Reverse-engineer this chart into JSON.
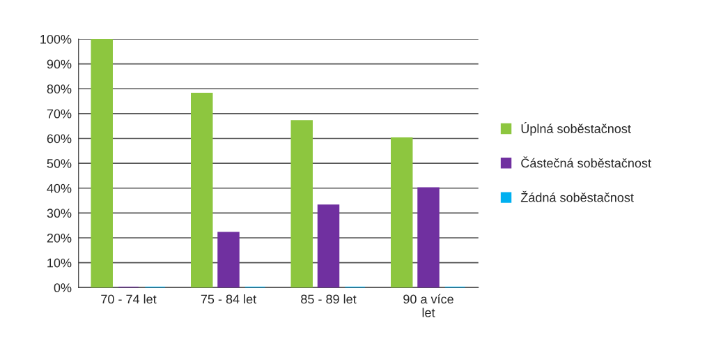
{
  "chart_data": {
    "type": "bar",
    "categories": [
      "70 - 74 let",
      "75 - 84 let",
      "85 - 89 let",
      "90 a více let"
    ],
    "series": [
      {
        "name": "Úplná soběstačnost",
        "color": "#8dc63f",
        "values": [
          100,
          78,
          67,
          60
        ]
      },
      {
        "name": "Částečná soběstačnost",
        "color": "#7030a0",
        "values": [
          0,
          22,
          33,
          40
        ]
      },
      {
        "name": "Žádná soběstačnost",
        "color": "#00b0f0",
        "values": [
          0,
          0,
          0,
          0
        ]
      }
    ],
    "ylim": [
      0,
      100
    ],
    "yticks": [
      {
        "value": 0,
        "label": "0%"
      },
      {
        "value": 10,
        "label": "10%"
      },
      {
        "value": 20,
        "label": "20%"
      },
      {
        "value": 30,
        "label": "30%"
      },
      {
        "value": 40,
        "label": "40%"
      },
      {
        "value": 50,
        "label": "50%"
      },
      {
        "value": 60,
        "label": "60%"
      },
      {
        "value": 70,
        "label": "70%"
      },
      {
        "value": 80,
        "label": "80%"
      },
      {
        "value": 90,
        "label": "90%"
      },
      {
        "value": 100,
        "label": "100%"
      }
    ],
    "grid": "y",
    "legend": "right"
  }
}
